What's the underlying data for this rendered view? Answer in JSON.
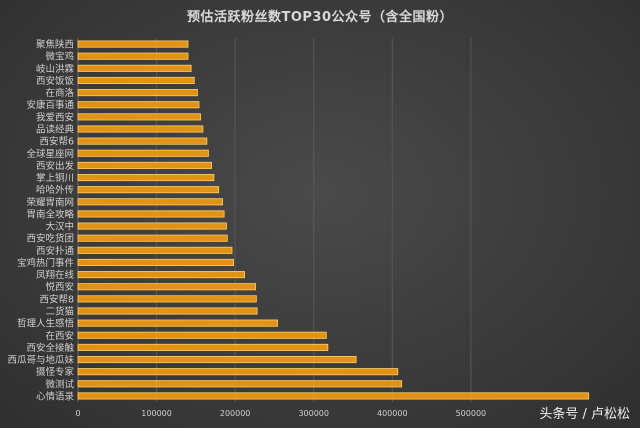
{
  "title": "预估活跃粉丝数TOP30公众号（含全国粉）",
  "watermark": "头条号 / 卢松松",
  "colors": {
    "bar_fill": "#f39c12",
    "bar_stroke": "#ffcc66",
    "grid": "#585858",
    "text": "#d0d0d0"
  },
  "chart_data": {
    "type": "bar",
    "orientation": "horizontal",
    "title": "预估活跃粉丝数TOP30公众号（含全国粉）",
    "categories": [
      "心情语录",
      "微测试",
      "摄怪专家",
      "西瓜哥与地瓜妹",
      "西安全接触",
      "在西安",
      "哲理人生感悟",
      "二货猫",
      "西安帮8",
      "悦西安",
      "凤翔在线",
      "宝鸡热门事件",
      "西安扑通",
      "西安吃货团",
      "大汉中",
      "胃南全攻略",
      "荣耀胃南网",
      "哈哈外传",
      "掌上铜川",
      "西安出发",
      "全球星座网",
      "西安帮6",
      "品读经典",
      "我爱西安",
      "安康百事通",
      "在商洛",
      "西安饭饭",
      "岐山洪霖",
      "微宝鸡",
      "聚焦陕西"
    ],
    "values": [
      650000,
      412000,
      407000,
      354000,
      318000,
      316000,
      254000,
      228000,
      227000,
      226000,
      212000,
      198000,
      196000,
      190000,
      189000,
      186000,
      184000,
      179000,
      173000,
      170000,
      166000,
      164000,
      159000,
      156000,
      154000,
      152000,
      148000,
      144000,
      140000,
      140000
    ],
    "xlim": [
      0,
      700000
    ],
    "xticks": [
      0,
      100000,
      200000,
      300000,
      400000,
      500000
    ],
    "grid": true,
    "legend": "none"
  }
}
